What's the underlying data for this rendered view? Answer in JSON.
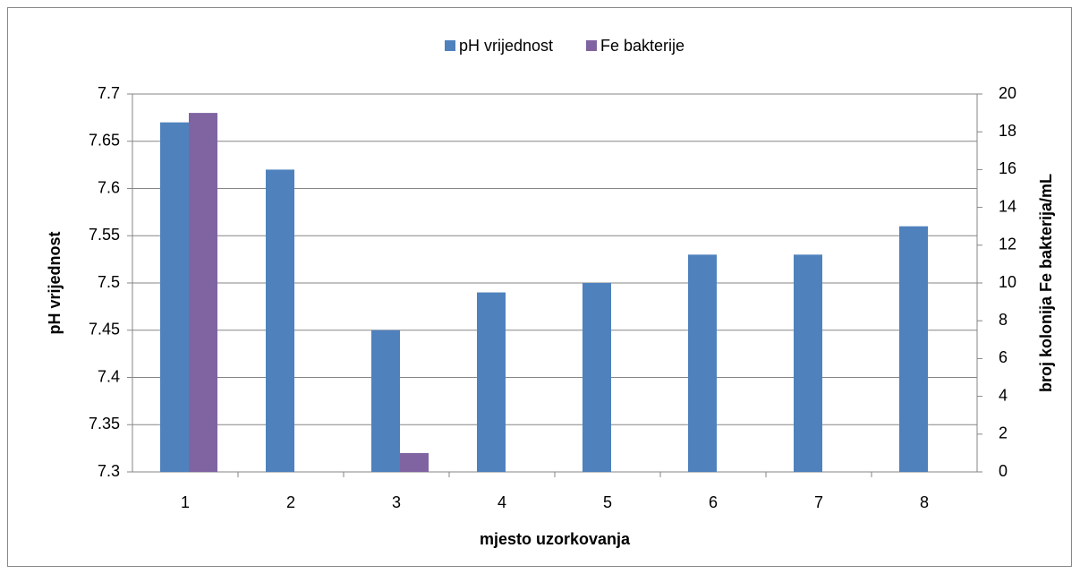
{
  "chart_data": {
    "type": "bar",
    "categories": [
      "1",
      "2",
      "3",
      "4",
      "5",
      "6",
      "7",
      "8"
    ],
    "series": [
      {
        "name": "pH vrijednost",
        "color": "#4f81bd",
        "values": [
          7.67,
          7.62,
          7.45,
          7.49,
          7.5,
          7.53,
          7.53,
          7.56
        ]
      },
      {
        "name": "Fe bakterije",
        "color": "#8064a2",
        "axis": "y2",
        "values": [
          19,
          0,
          1,
          0,
          0,
          0,
          0,
          0
        ]
      }
    ],
    "x_label": "mjesto uzorkovanja",
    "y_label": "pH vrijednost",
    "y2_label": "broj kolonija Fe bakterija/mL",
    "ylim": [
      7.3,
      7.7
    ],
    "yticks": [
      7.3,
      7.35,
      7.4,
      7.45,
      7.5,
      7.55,
      7.6,
      7.65,
      7.7
    ],
    "y2lim": [
      0,
      20
    ],
    "y2ticks": [
      0,
      2,
      4,
      6,
      8,
      10,
      12,
      14,
      16,
      18,
      20
    ],
    "grid": true,
    "legend": "top"
  }
}
